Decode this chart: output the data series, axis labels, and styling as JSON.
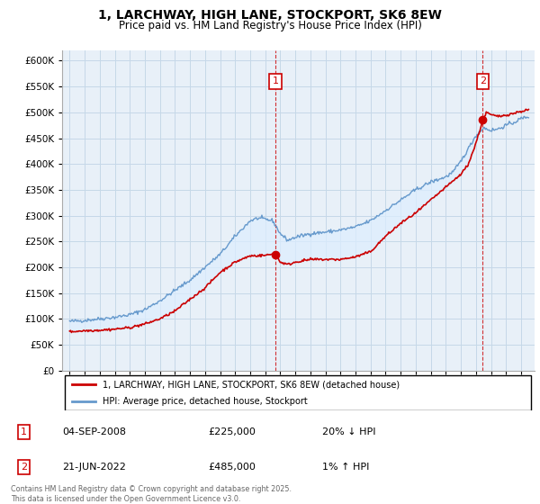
{
  "title": "1, LARCHWAY, HIGH LANE, STOCKPORT, SK6 8EW",
  "subtitle": "Price paid vs. HM Land Registry's House Price Index (HPI)",
  "legend_line1": "1, LARCHWAY, HIGH LANE, STOCKPORT, SK6 8EW (detached house)",
  "legend_line2": "HPI: Average price, detached house, Stockport",
  "annotation1_date": "04-SEP-2008",
  "annotation1_price": "£225,000",
  "annotation1_hpi": "20% ↓ HPI",
  "annotation2_date": "21-JUN-2022",
  "annotation2_price": "£485,000",
  "annotation2_hpi": "1% ↑ HPI",
  "footnote": "Contains HM Land Registry data © Crown copyright and database right 2025.\nThis data is licensed under the Open Government Licence v3.0.",
  "ylim": [
    0,
    620000
  ],
  "yticks": [
    0,
    50000,
    100000,
    150000,
    200000,
    250000,
    300000,
    350000,
    400000,
    450000,
    500000,
    550000,
    600000
  ],
  "red_color": "#cc0000",
  "blue_color": "#6699cc",
  "fill_color": "#ddeeff",
  "background_color": "#ffffff",
  "grid_color": "#ccddee",
  "sale1_x": 2008.67,
  "sale1_y": 225000,
  "sale2_x": 2022.46,
  "sale2_y": 485000,
  "xmin": 1994.5,
  "xmax": 2025.9
}
